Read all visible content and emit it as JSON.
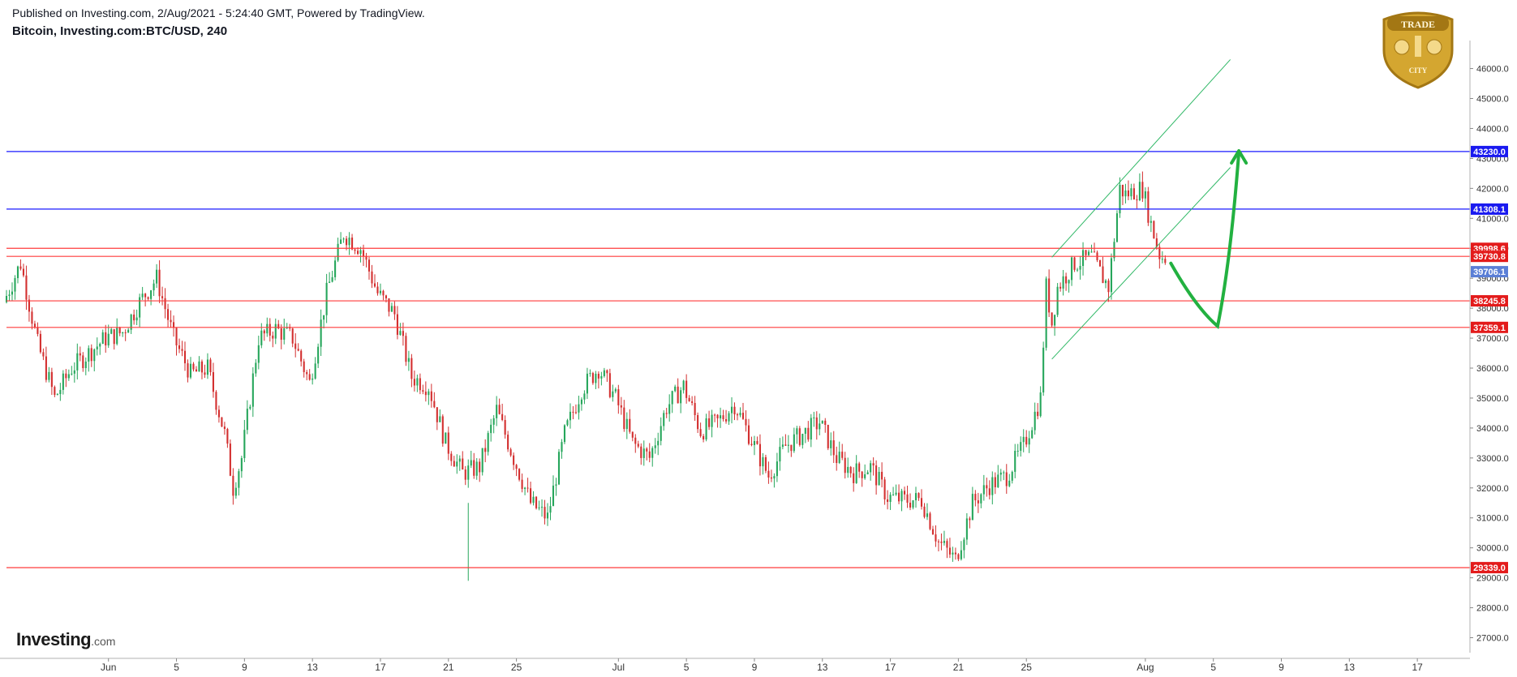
{
  "header": {
    "published": "Published on Investing.com, 2/Aug/2021 - 5:24:40 GMT, Powered by TradingView.",
    "symbol": "Bitcoin, Investing.com:BTC/USD, 240"
  },
  "branding": {
    "name": "Investing",
    "suffix": ".com"
  },
  "logo": {
    "text_top": "TRADE",
    "text_bottom": "CITY",
    "colors": {
      "gold": "#d4a630",
      "dark_gold": "#a37714"
    }
  },
  "colors": {
    "up": "#26a65b",
    "down": "#d32f2f",
    "blue_line": "#1a1aff",
    "red_line": "#ff3b3b",
    "channel": "#2fb866",
    "arrow": "#22b140",
    "grid": "#e6e6e6"
  },
  "chart_data": {
    "type": "candlestick",
    "ylim": [
      26500,
      46800
    ],
    "y_ticks": [
      27000,
      28000,
      29000,
      30000,
      31000,
      32000,
      33000,
      34000,
      35000,
      36000,
      37000,
      38000,
      39000,
      40000,
      41000,
      42000,
      43000,
      44000,
      45000,
      46000
    ],
    "x_range": [
      "2021-05-26",
      "2021-08-20"
    ],
    "x_ticks": [
      {
        "date": "2021-06-01",
        "label": "Jun"
      },
      {
        "date": "2021-06-05",
        "label": "5"
      },
      {
        "date": "2021-06-09",
        "label": "9"
      },
      {
        "date": "2021-06-13",
        "label": "13"
      },
      {
        "date": "2021-06-17",
        "label": "17"
      },
      {
        "date": "2021-06-21",
        "label": "21"
      },
      {
        "date": "2021-06-25",
        "label": "25"
      },
      {
        "date": "2021-07-01",
        "label": "Jul"
      },
      {
        "date": "2021-07-05",
        "label": "5"
      },
      {
        "date": "2021-07-09",
        "label": "9"
      },
      {
        "date": "2021-07-13",
        "label": "13"
      },
      {
        "date": "2021-07-17",
        "label": "17"
      },
      {
        "date": "2021-07-21",
        "label": "21"
      },
      {
        "date": "2021-07-25",
        "label": "25"
      },
      {
        "date": "2021-08-01",
        "label": "Aug"
      },
      {
        "date": "2021-08-05",
        "label": "5"
      },
      {
        "date": "2021-08-09",
        "label": "9"
      },
      {
        "date": "2021-08-13",
        "label": "13"
      },
      {
        "date": "2021-08-17",
        "label": "17"
      }
    ],
    "price_path": [
      [
        "2021-05-26",
        38200
      ],
      [
        "2021-05-27",
        39500
      ],
      [
        "2021-05-28",
        36800
      ],
      [
        "2021-05-29",
        35000
      ],
      [
        "2021-05-30",
        36000
      ],
      [
        "2021-06-01",
        37000
      ],
      [
        "2021-06-02",
        37200
      ],
      [
        "2021-06-03",
        38200
      ],
      [
        "2021-06-04",
        39000
      ],
      [
        "2021-06-05",
        37000
      ],
      [
        "2021-06-06",
        35800
      ],
      [
        "2021-06-07",
        36000
      ],
      [
        "2021-06-08",
        33800
      ],
      [
        "2021-06-08T12",
        32000
      ],
      [
        "2021-06-09",
        33000
      ],
      [
        "2021-06-10",
        37000
      ],
      [
        "2021-06-11",
        37300
      ],
      [
        "2021-06-12",
        37000
      ],
      [
        "2021-06-13",
        35500
      ],
      [
        "2021-06-14",
        38500
      ],
      [
        "2021-06-15",
        40500
      ],
      [
        "2021-06-16",
        40000
      ],
      [
        "2021-06-17",
        38500
      ],
      [
        "2021-06-18",
        37800
      ],
      [
        "2021-06-19",
        35700
      ],
      [
        "2021-06-20",
        35400
      ],
      [
        "2021-06-21",
        33500
      ],
      [
        "2021-06-22",
        32500
      ],
      [
        "2021-06-23",
        32700
      ],
      [
        "2021-06-24",
        34600
      ],
      [
        "2021-06-25",
        33000
      ],
      [
        "2021-06-26",
        31500
      ],
      [
        "2021-06-27",
        31000
      ],
      [
        "2021-06-28",
        33800
      ],
      [
        "2021-06-29",
        35300
      ],
      [
        "2021-06-30",
        36000
      ],
      [
        "2021-07-01",
        35000
      ],
      [
        "2021-07-02",
        33500
      ],
      [
        "2021-07-03",
        33000
      ],
      [
        "2021-07-04",
        34700
      ],
      [
        "2021-07-05",
        35400
      ],
      [
        "2021-07-06",
        33900
      ],
      [
        "2021-07-07",
        34200
      ],
      [
        "2021-07-08",
        34800
      ],
      [
        "2021-07-09",
        33600
      ],
      [
        "2021-07-10",
        32400
      ],
      [
        "2021-07-11",
        33400
      ],
      [
        "2021-07-12",
        33800
      ],
      [
        "2021-07-13",
        34200
      ],
      [
        "2021-07-14",
        33000
      ],
      [
        "2021-07-15",
        32500
      ],
      [
        "2021-07-16",
        32700
      ],
      [
        "2021-07-17",
        31700
      ],
      [
        "2021-07-18",
        31600
      ],
      [
        "2021-07-19",
        31600
      ],
      [
        "2021-07-20",
        30200
      ],
      [
        "2021-07-21",
        29600
      ],
      [
        "2021-07-22",
        31500
      ],
      [
        "2021-07-23",
        32100
      ],
      [
        "2021-07-24",
        32400
      ],
      [
        "2021-07-25",
        33400
      ],
      [
        "2021-07-26",
        35000
      ],
      [
        "2021-07-26T08",
        38700
      ],
      [
        "2021-07-26T16",
        37500
      ],
      [
        "2021-07-27",
        38700
      ],
      [
        "2021-07-28",
        39500
      ],
      [
        "2021-07-29",
        39700
      ],
      [
        "2021-07-30",
        38700
      ],
      [
        "2021-07-30T16",
        42000
      ],
      [
        "2021-07-31",
        41800
      ],
      [
        "2021-08-01",
        42000
      ],
      [
        "2021-08-01T12",
        40800
      ],
      [
        "2021-08-02",
        39800
      ],
      [
        "2021-08-02T04",
        39706
      ]
    ],
    "spike_lows": [
      [
        "2021-06-22T04",
        28900
      ]
    ],
    "levels": [
      {
        "value": 43230.0,
        "label": "43230.0",
        "color": "blue"
      },
      {
        "value": 41308.1,
        "label": "41308.1",
        "color": "blue"
      },
      {
        "value": 39998.6,
        "label": "39998.6",
        "color": "red"
      },
      {
        "value": 39730.8,
        "label": "39730.8",
        "color": "red"
      },
      {
        "value": 38245.8,
        "label": "38245.8",
        "color": "red"
      },
      {
        "value": 37359.1,
        "label": "37359.1",
        "color": "red"
      },
      {
        "value": 29339.0,
        "label": "29339.0",
        "color": "red"
      }
    ],
    "last_price": {
      "value": 39706.1,
      "label": "39706.1"
    },
    "channel": {
      "upper": [
        [
          "2021-07-26T12",
          39700
        ],
        [
          "2021-08-06",
          46300
        ]
      ],
      "lower": [
        [
          "2021-07-26T12",
          36300
        ],
        [
          "2021-08-06",
          42700
        ]
      ]
    },
    "projection": [
      [
        "2021-08-02T12",
        39500
      ],
      [
        "2021-08-04",
        38000
      ],
      [
        "2021-08-05T06",
        37400
      ],
      [
        "2021-08-06",
        39500
      ],
      [
        "2021-08-06T12",
        43200
      ]
    ]
  }
}
